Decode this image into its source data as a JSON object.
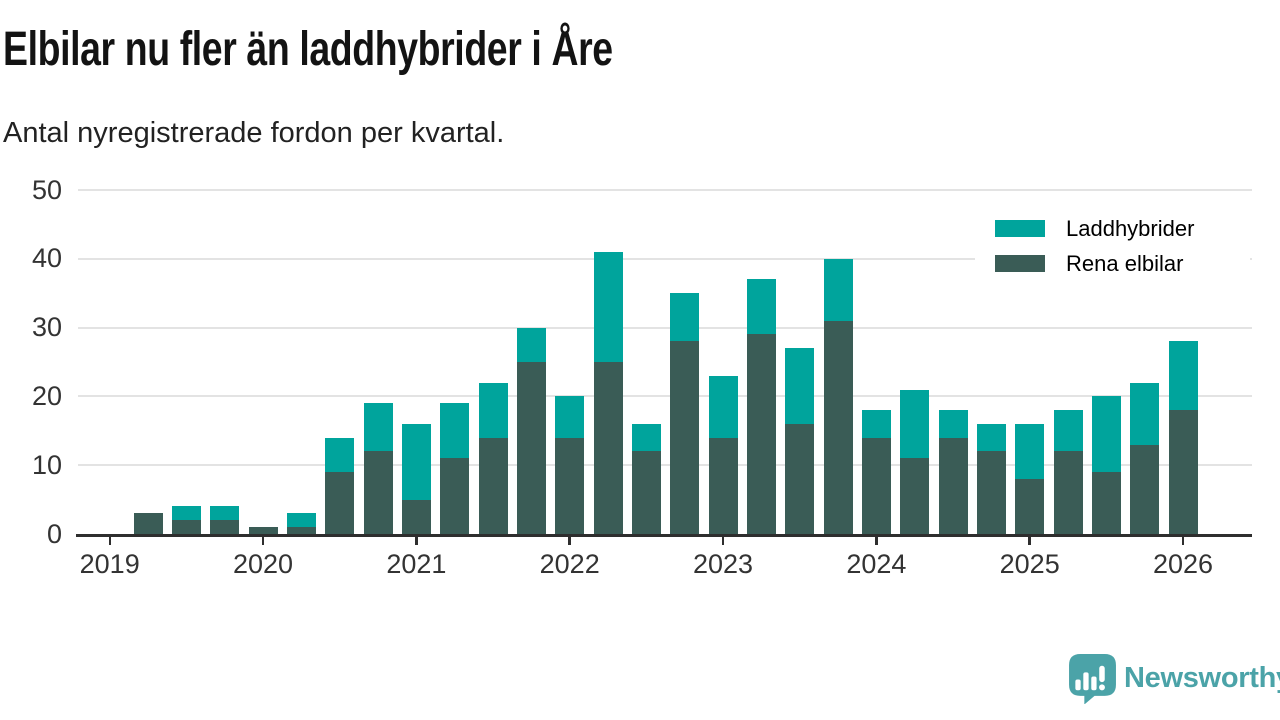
{
  "chart_data": {
    "type": "bar",
    "stacked": true,
    "title": "Elbilar nu fler än laddhybrider i Åre",
    "subtitle": "Antal nyregistrerade fordon per kvartal.",
    "categories": [
      "2019 Q1",
      "2019 Q2",
      "2019 Q3",
      "2019 Q4",
      "2020 Q1",
      "2020 Q2",
      "2020 Q3",
      "2020 Q4",
      "2021 Q1",
      "2021 Q2",
      "2021 Q3",
      "2021 Q4",
      "2022 Q1",
      "2022 Q2",
      "2022 Q3",
      "2022 Q4",
      "2023 Q1",
      "2023 Q2",
      "2023 Q3",
      "2023 Q4",
      "2024 Q1",
      "2024 Q2",
      "2024 Q3",
      "2024 Q4",
      "2025 Q1",
      "2025 Q2",
      "2025 Q3",
      "2025 Q4",
      "2026 Q1"
    ],
    "series": [
      {
        "name": "Rena elbilar",
        "color": "#3a5c56",
        "stack_order": "bottom",
        "values": [
          0,
          3,
          2,
          2,
          1,
          1,
          9,
          12,
          5,
          11,
          14,
          25,
          14,
          25,
          12,
          28,
          14,
          29,
          16,
          31,
          14,
          11,
          14,
          12,
          8,
          12,
          9,
          13,
          18
        ]
      },
      {
        "name": "Laddhybrider",
        "color": "#00a49c",
        "stack_order": "top",
        "values": [
          0,
          0,
          2,
          2,
          0,
          2,
          5,
          7,
          11,
          8,
          8,
          5,
          6,
          16,
          4,
          7,
          9,
          8,
          11,
          9,
          4,
          10,
          4,
          4,
          8,
          6,
          11,
          9,
          10
        ]
      }
    ],
    "ylim": [
      0,
      50
    ],
    "yticks": [
      0,
      10,
      20,
      30,
      40,
      50
    ],
    "xtick_labels": [
      "2019",
      "2020",
      "2021",
      "2022",
      "2023",
      "2024",
      "2025",
      "2026"
    ],
    "grid": "horizontal",
    "legend_position": "top-right"
  },
  "legend": {
    "items": [
      {
        "label": "Laddhybrider",
        "color": "#00a49c"
      },
      {
        "label": "Rena elbilar",
        "color": "#3a5c56"
      }
    ]
  },
  "footer": {
    "brand": "Newsworthy",
    "brand_color": "#4ba3a8"
  },
  "colors": {
    "background": "#ffffff",
    "title": "#131313",
    "subtitle": "#222222",
    "axis": "#2e2e2e",
    "tick_label": "#333333",
    "gridline": "#e3e3e3"
  }
}
